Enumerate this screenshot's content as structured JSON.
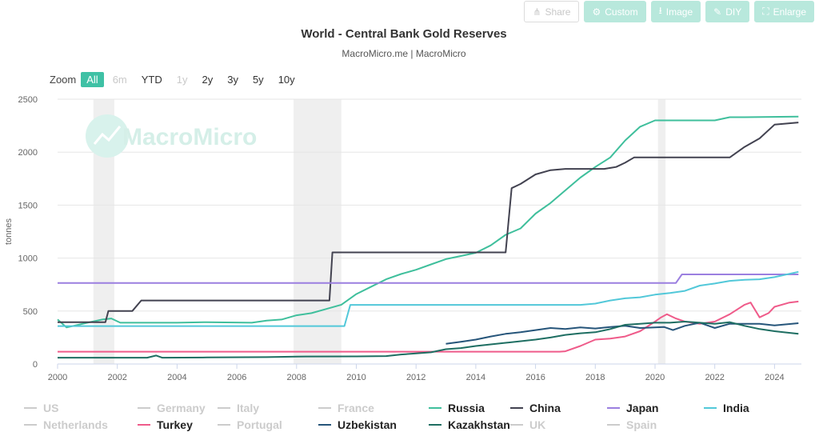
{
  "toolbar": [
    {
      "label": "Share",
      "icon": "share-icon",
      "glyph": "⋔",
      "style": "outline"
    },
    {
      "label": "Custom",
      "icon": "gear-icon",
      "glyph": "⚙",
      "style": "filled"
    },
    {
      "label": "Image",
      "icon": "download-icon",
      "glyph": "⭳",
      "style": "filled"
    },
    {
      "label": "DIY",
      "icon": "pencil-icon",
      "glyph": "✎",
      "style": "filled"
    },
    {
      "label": "Enlarge",
      "icon": "expand-icon",
      "glyph": "⛶",
      "style": "filled"
    }
  ],
  "zoom": {
    "label": "Zoom",
    "buttons": [
      {
        "label": "All",
        "state": "active"
      },
      {
        "label": "6m",
        "state": "disabled"
      },
      {
        "label": "YTD",
        "state": "normal"
      },
      {
        "label": "1y",
        "state": "disabled"
      },
      {
        "label": "2y",
        "state": "normal"
      },
      {
        "label": "3y",
        "state": "normal"
      },
      {
        "label": "5y",
        "state": "normal"
      },
      {
        "label": "10y",
        "state": "normal"
      }
    ]
  },
  "watermark": "MacroMicro",
  "chart_data": {
    "type": "line",
    "title": "World - Central Bank Gold Reserves",
    "subtitle": "MacroMicro.me | MacroMicro",
    "xlabel": "",
    "ylabel": "tonnes",
    "xlim": [
      2000,
      2024.9
    ],
    "ylim": [
      0,
      2500
    ],
    "xticks": [
      2000,
      2002,
      2004,
      2006,
      2008,
      2010,
      2012,
      2014,
      2016,
      2018,
      2020,
      2022,
      2024
    ],
    "yticks": [
      0,
      500,
      1000,
      1500,
      2000,
      2500
    ],
    "grid": true,
    "recession_bands": [
      [
        2001.2,
        2001.9
      ],
      [
        2007.9,
        2009.5
      ],
      [
        2020.1,
        2020.35
      ]
    ],
    "series": [
      {
        "name": "Russia",
        "color": "#3fbf9c",
        "points": [
          [
            2000,
            420
          ],
          [
            2000.3,
            345
          ],
          [
            2001,
            390
          ],
          [
            2001.5,
            420
          ],
          [
            2001.8,
            430
          ],
          [
            2002.1,
            390
          ],
          [
            2004,
            390
          ],
          [
            2005,
            395
          ],
          [
            2006.5,
            390
          ],
          [
            2007,
            410
          ],
          [
            2007.5,
            420
          ],
          [
            2008,
            460
          ],
          [
            2008.5,
            480
          ],
          [
            2009,
            520
          ],
          [
            2009.5,
            560
          ],
          [
            2010,
            660
          ],
          [
            2010.5,
            730
          ],
          [
            2011,
            800
          ],
          [
            2011.5,
            850
          ],
          [
            2012,
            890
          ],
          [
            2012.5,
            940
          ],
          [
            2013,
            990
          ],
          [
            2013.5,
            1020
          ],
          [
            2014,
            1050
          ],
          [
            2014.5,
            1120
          ],
          [
            2015,
            1220
          ],
          [
            2015.5,
            1280
          ],
          [
            2016,
            1420
          ],
          [
            2016.5,
            1520
          ],
          [
            2017,
            1640
          ],
          [
            2017.5,
            1760
          ],
          [
            2018,
            1860
          ],
          [
            2018.5,
            1950
          ],
          [
            2019,
            2110
          ],
          [
            2019.5,
            2240
          ],
          [
            2020,
            2300
          ],
          [
            2021,
            2300
          ],
          [
            2022,
            2300
          ],
          [
            2022.5,
            2330
          ],
          [
            2023,
            2330
          ],
          [
            2024.8,
            2335
          ]
        ]
      },
      {
        "name": "China",
        "color": "#424250",
        "points": [
          [
            2000,
            395
          ],
          [
            2001.6,
            395
          ],
          [
            2001.7,
            500
          ],
          [
            2002.5,
            500
          ],
          [
            2002.8,
            600
          ],
          [
            2009.1,
            600
          ],
          [
            2009.2,
            1054
          ],
          [
            2015.0,
            1054
          ],
          [
            2015.2,
            1660
          ],
          [
            2015.5,
            1700
          ],
          [
            2016,
            1790
          ],
          [
            2016.5,
            1830
          ],
          [
            2017,
            1842
          ],
          [
            2018.3,
            1842
          ],
          [
            2018.7,
            1860
          ],
          [
            2019,
            1900
          ],
          [
            2019.3,
            1950
          ],
          [
            2022.5,
            1950
          ],
          [
            2023,
            2050
          ],
          [
            2023.5,
            2130
          ],
          [
            2024,
            2260
          ],
          [
            2024.8,
            2280
          ]
        ]
      },
      {
        "name": "Japan",
        "color": "#9b7fe0",
        "points": [
          [
            2000,
            765
          ],
          [
            2000.6,
            765
          ],
          [
            2000.8,
            765
          ],
          [
            2020.7,
            765
          ],
          [
            2020.9,
            846
          ],
          [
            2024.8,
            846
          ]
        ]
      },
      {
        "name": "India",
        "color": "#52c8d9",
        "points": [
          [
            2000,
            358
          ],
          [
            2009.6,
            358
          ],
          [
            2009.8,
            558
          ],
          [
            2017.5,
            558
          ],
          [
            2018,
            570
          ],
          [
            2018.5,
            600
          ],
          [
            2019,
            620
          ],
          [
            2019.5,
            630
          ],
          [
            2020,
            655
          ],
          [
            2020.5,
            670
          ],
          [
            2021,
            690
          ],
          [
            2021.5,
            740
          ],
          [
            2022,
            760
          ],
          [
            2022.5,
            785
          ],
          [
            2023,
            795
          ],
          [
            2023.5,
            800
          ],
          [
            2024,
            820
          ],
          [
            2024.8,
            870
          ]
        ]
      },
      {
        "name": "Turkey",
        "color": "#ef5b8a",
        "points": [
          [
            2000,
            116
          ],
          [
            2016.8,
            116
          ],
          [
            2017,
            120
          ],
          [
            2017.5,
            170
          ],
          [
            2018,
            230
          ],
          [
            2018.5,
            240
          ],
          [
            2019,
            260
          ],
          [
            2019.5,
            310
          ],
          [
            2020,
            400
          ],
          [
            2020.2,
            440
          ],
          [
            2020.4,
            470
          ],
          [
            2020.7,
            430
          ],
          [
            2021,
            400
          ],
          [
            2021.5,
            380
          ],
          [
            2022,
            400
          ],
          [
            2022.5,
            470
          ],
          [
            2023,
            560
          ],
          [
            2023.2,
            580
          ],
          [
            2023.5,
            440
          ],
          [
            2023.8,
            480
          ],
          [
            2024,
            540
          ],
          [
            2024.5,
            580
          ],
          [
            2024.8,
            590
          ]
        ]
      },
      {
        "name": "Uzbekistan",
        "color": "#26557a",
        "points": [
          [
            2013,
            190
          ],
          [
            2013.5,
            210
          ],
          [
            2014,
            230
          ],
          [
            2014.5,
            260
          ],
          [
            2015,
            285
          ],
          [
            2015.5,
            300
          ],
          [
            2016,
            320
          ],
          [
            2016.5,
            340
          ],
          [
            2017,
            330
          ],
          [
            2017.5,
            345
          ],
          [
            2018,
            335
          ],
          [
            2018.5,
            350
          ],
          [
            2019,
            360
          ],
          [
            2019.5,
            340
          ],
          [
            2020,
            345
          ],
          [
            2020.3,
            350
          ],
          [
            2020.6,
            320
          ],
          [
            2021,
            360
          ],
          [
            2021.5,
            390
          ],
          [
            2022,
            340
          ],
          [
            2022.5,
            380
          ],
          [
            2023,
            380
          ],
          [
            2023.5,
            380
          ],
          [
            2024,
            365
          ],
          [
            2024.8,
            385
          ]
        ]
      },
      {
        "name": "Kazakhstan",
        "color": "#1e6e62",
        "points": [
          [
            2000,
            60
          ],
          [
            2003,
            60
          ],
          [
            2003.3,
            80
          ],
          [
            2003.5,
            60
          ],
          [
            2005,
            62
          ],
          [
            2007,
            65
          ],
          [
            2008,
            70
          ],
          [
            2010,
            72
          ],
          [
            2011,
            75
          ],
          [
            2011.5,
            90
          ],
          [
            2012,
            100
          ],
          [
            2012.5,
            110
          ],
          [
            2013,
            140
          ],
          [
            2013.5,
            150
          ],
          [
            2014,
            170
          ],
          [
            2015,
            200
          ],
          [
            2016,
            230
          ],
          [
            2016.5,
            250
          ],
          [
            2017,
            275
          ],
          [
            2017.5,
            290
          ],
          [
            2018,
            300
          ],
          [
            2018.5,
            330
          ],
          [
            2019,
            370
          ],
          [
            2019.5,
            380
          ],
          [
            2020,
            390
          ],
          [
            2020.5,
            390
          ],
          [
            2021,
            400
          ],
          [
            2021.5,
            390
          ],
          [
            2022,
            380
          ],
          [
            2022.5,
            395
          ],
          [
            2023,
            360
          ],
          [
            2023.5,
            330
          ],
          [
            2024,
            310
          ],
          [
            2024.3,
            300
          ],
          [
            2024.8,
            285
          ]
        ]
      }
    ]
  },
  "legend": [
    {
      "label": "US",
      "active": false,
      "color": "#cccccc"
    },
    {
      "label": "Germany",
      "active": false,
      "color": "#cccccc"
    },
    {
      "label": "Italy",
      "active": false,
      "color": "#cccccc"
    },
    {
      "label": "France",
      "active": false,
      "color": "#cccccc"
    },
    {
      "label": "Russia",
      "active": true,
      "color": "#3fbf9c"
    },
    {
      "label": "China",
      "active": true,
      "color": "#424250"
    },
    {
      "label": "Japan",
      "active": true,
      "color": "#9b7fe0"
    },
    {
      "label": "India",
      "active": true,
      "color": "#52c8d9"
    },
    {
      "label": "Netherlands",
      "active": false,
      "color": "#cccccc"
    },
    {
      "label": "Turkey",
      "active": true,
      "color": "#ef5b8a"
    },
    {
      "label": "Portugal",
      "active": false,
      "color": "#cccccc"
    },
    {
      "label": "Uzbekistan",
      "active": true,
      "color": "#26557a"
    },
    {
      "label": "Kazakhstan",
      "active": true,
      "color": "#1e6e62"
    },
    {
      "label": "UK",
      "active": false,
      "color": "#cccccc"
    },
    {
      "label": "Spain",
      "active": false,
      "color": "#cccccc"
    }
  ]
}
